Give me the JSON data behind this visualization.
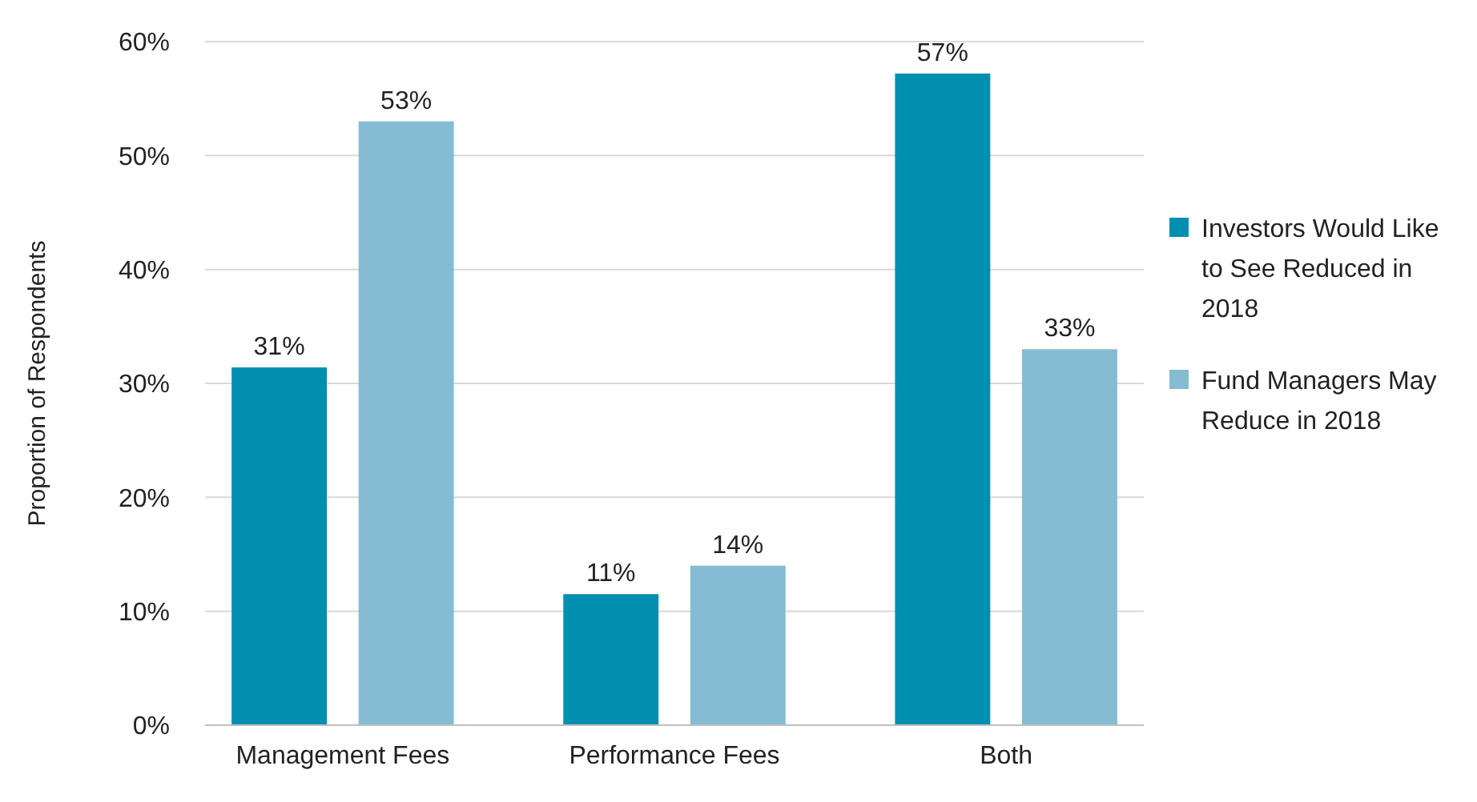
{
  "chart_data": {
    "type": "bar",
    "ylabel": "Proportion of Respondents",
    "categories": [
      "Management Fees",
      "Performance Fees",
      "Both"
    ],
    "series": [
      {
        "name": "Investors Would Like to See Reduced in 2018",
        "color": "#008fb0",
        "values": [
          31.4,
          11.5,
          57.2
        ],
        "value_labels": [
          "31%",
          "11%",
          "57%"
        ]
      },
      {
        "name": "Fund Managers May Reduce in 2018",
        "color": "#85bcd4",
        "values": [
          53,
          14,
          33
        ],
        "value_labels": [
          "53%",
          "14%",
          "33%"
        ]
      }
    ],
    "ylim": [
      0,
      60
    ],
    "yticks": [
      {
        "value": 0,
        "label": "0%"
      },
      {
        "value": 10,
        "label": "10%"
      },
      {
        "value": 20,
        "label": "20%"
      },
      {
        "value": 30,
        "label": "30%"
      },
      {
        "value": 40,
        "label": "40%"
      },
      {
        "value": 50,
        "label": "50%"
      },
      {
        "value": 60,
        "label": "60%"
      }
    ],
    "grid": "y",
    "legend": "right"
  }
}
